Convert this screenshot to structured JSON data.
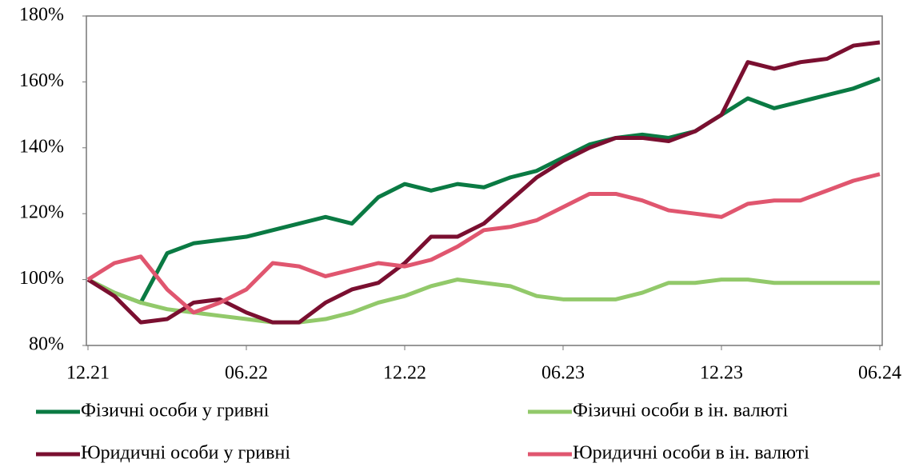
{
  "chart_data": {
    "type": "line",
    "categories": [
      "12.21",
      null,
      null,
      null,
      null,
      null,
      "06.22",
      null,
      null,
      null,
      null,
      null,
      "12.22",
      null,
      null,
      null,
      null,
      null,
      "06.23",
      null,
      null,
      null,
      null,
      null,
      "12.23",
      null,
      null,
      null,
      null,
      null,
      "06.24"
    ],
    "series": [
      {
        "name": "Фізичні особи у гривні",
        "color": "#0a7a43",
        "values": [
          100,
          96,
          93,
          108,
          111,
          112,
          113,
          115,
          117,
          119,
          117,
          125,
          129,
          127,
          129,
          128,
          131,
          133,
          137,
          141,
          143,
          144,
          143,
          145,
          150,
          155,
          152,
          154,
          156,
          158,
          161
        ]
      },
      {
        "name": "Фізичні особи в ін. валюті",
        "color": "#92c96a",
        "values": [
          100,
          96,
          93,
          91,
          90,
          89,
          88,
          87,
          87,
          88,
          90,
          93,
          95,
          98,
          100,
          99,
          98,
          95,
          94,
          94,
          94,
          96,
          99,
          99,
          100,
          100,
          99,
          99,
          99,
          99,
          99
        ]
      },
      {
        "name": "Юридичні особи у гривні",
        "color": "#7a0f30",
        "values": [
          100,
          95,
          87,
          88,
          93,
          94,
          90,
          87,
          87,
          93,
          97,
          99,
          105,
          113,
          113,
          117,
          124,
          131,
          136,
          140,
          143,
          143,
          142,
          145,
          150,
          166,
          164,
          166,
          167,
          171,
          172
        ]
      },
      {
        "name": "Юридичні особи в ін. валюті",
        "color": "#e0566f",
        "values": [
          100,
          105,
          107,
          97,
          90,
          93,
          97,
          105,
          104,
          101,
          103,
          105,
          104,
          106,
          110,
          115,
          116,
          118,
          122,
          126,
          126,
          124,
          121,
          120,
          119,
          123,
          124,
          124,
          127,
          130,
          132
        ]
      }
    ],
    "ylim": [
      80,
      180
    ],
    "yticks": [
      {
        "value": 80,
        "label": "80%"
      },
      {
        "value": 100,
        "label": "100%"
      },
      {
        "value": 120,
        "label": "120%"
      },
      {
        "value": 140,
        "label": "140%"
      },
      {
        "value": 160,
        "label": "160%"
      },
      {
        "value": 180,
        "label": "180%"
      }
    ],
    "legend": "bottom"
  }
}
